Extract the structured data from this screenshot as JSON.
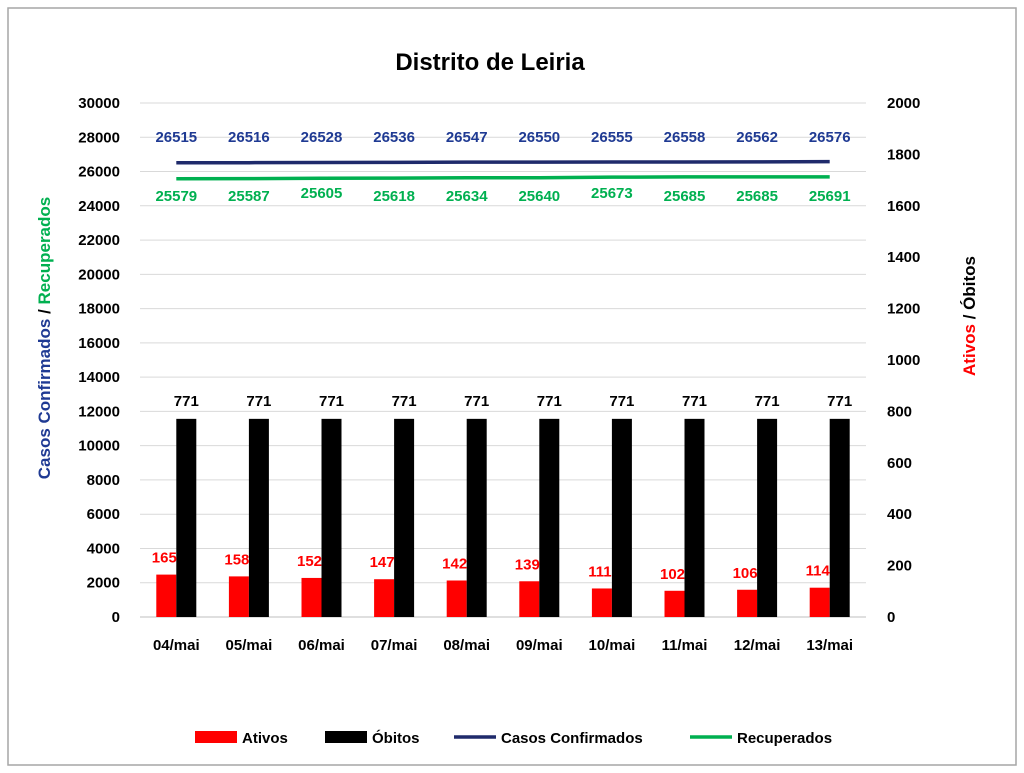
{
  "chart_data": {
    "type": "bar",
    "title": "Distrito de Leiria",
    "categories": [
      "04/mai",
      "05/mai",
      "06/mai",
      "07/mai",
      "08/mai",
      "09/mai",
      "10/mai",
      "11/mai",
      "12/mai",
      "13/mai"
    ],
    "left_axis": {
      "label_part1": "Casos Confirmados",
      "label_sep": " / ",
      "label_part2": "Recuperados",
      "ylim": [
        0,
        30000
      ],
      "ticks": [
        "0",
        "2000",
        "4000",
        "6000",
        "8000",
        "10000",
        "12000",
        "14000",
        "16000",
        "18000",
        "20000",
        "22000",
        "24000",
        "26000",
        "28000",
        "30000"
      ]
    },
    "right_axis": {
      "label_part1": "Ativos",
      "label_sep": " / ",
      "label_part2": "Óbitos",
      "ylim": [
        0,
        2000
      ],
      "ticks": [
        "0",
        "200",
        "400",
        "600",
        "800",
        "1000",
        "1200",
        "1400",
        "1600",
        "1800",
        "2000"
      ]
    },
    "series": [
      {
        "name": "Ativos",
        "type": "bar",
        "axis": "right",
        "color": "#ff0000",
        "values": [
          165,
          158,
          152,
          147,
          142,
          139,
          111,
          102,
          106,
          114
        ]
      },
      {
        "name": "Óbitos",
        "type": "bar",
        "axis": "right",
        "color": "#000000",
        "values": [
          771,
          771,
          771,
          771,
          771,
          771,
          771,
          771,
          771,
          771
        ]
      },
      {
        "name": "Casos Confirmados",
        "type": "line",
        "axis": "left",
        "color": "#1f2a6b",
        "values": [
          26515,
          26516,
          26528,
          26536,
          26547,
          26550,
          26555,
          26558,
          26562,
          26576
        ]
      },
      {
        "name": "Recuperados",
        "type": "line",
        "axis": "left",
        "color": "#00b050",
        "values": [
          25579,
          25587,
          25605,
          25618,
          25634,
          25640,
          25673,
          25685,
          25685,
          25691
        ]
      }
    ],
    "legend_position": "bottom",
    "grid": true
  }
}
